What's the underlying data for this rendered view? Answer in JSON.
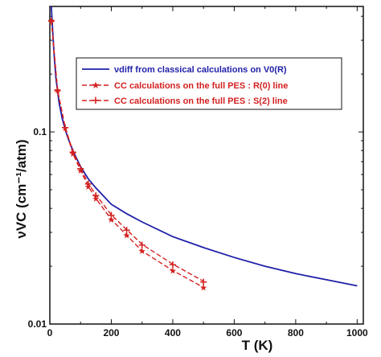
{
  "chart_data": {
    "type": "line",
    "xlabel": "T (K)",
    "ylabel": "νVC (cm⁻¹/atm)",
    "xlim": [
      0,
      1020
    ],
    "ylim": [
      0.01,
      0.45
    ],
    "yscale": "log",
    "grid": false,
    "x_ticks": [
      0,
      200,
      400,
      600,
      800,
      1000
    ],
    "y_ticks": [
      0.1,
      0.01
    ],
    "y_tick_labels": [
      "0.1",
      "0.01"
    ],
    "legend_position": "top-right",
    "series": [
      {
        "name": "νdiff from classical calculations on V0(R)",
        "style": "solid",
        "color": "#1f1fa8",
        "x": [
          5,
          10,
          15,
          20,
          30,
          40,
          50,
          60,
          75,
          100,
          125,
          150,
          200,
          250,
          300,
          400,
          500,
          600,
          700,
          800,
          900,
          1000
        ],
        "y": [
          0.45,
          0.32,
          0.24,
          0.19,
          0.142,
          0.118,
          0.103,
          0.092,
          0.08,
          0.066,
          0.057,
          0.051,
          0.042,
          0.0375,
          0.034,
          0.0285,
          0.025,
          0.0222,
          0.02,
          0.0183,
          0.017,
          0.0158
        ]
      },
      {
        "name": "CC calculations on the full PES : R(0) line",
        "style": "dashed",
        "marker": "star",
        "color": "#d42020",
        "x": [
          5,
          25,
          50,
          75,
          100,
          125,
          150,
          200,
          250,
          300,
          400,
          500
        ],
        "y": [
          0.38,
          0.165,
          0.105,
          0.077,
          0.063,
          0.052,
          0.045,
          0.035,
          0.029,
          0.024,
          0.019,
          0.0155
        ]
      },
      {
        "name": "CC calculations on the full PES : S(2) line",
        "style": "dashed",
        "marker": "plus",
        "color": "#d42020",
        "x": [
          5,
          25,
          50,
          75,
          100,
          125,
          150,
          200,
          250,
          300,
          400,
          500
        ],
        "y": [
          0.38,
          0.165,
          0.106,
          0.079,
          0.065,
          0.054,
          0.047,
          0.037,
          0.031,
          0.026,
          0.0205,
          0.0167
        ]
      }
    ]
  }
}
